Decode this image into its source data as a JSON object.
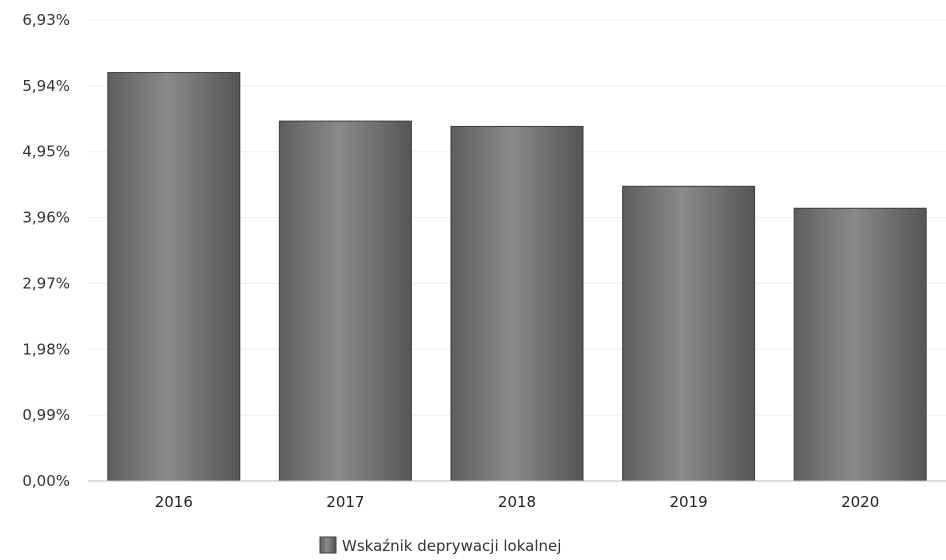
{
  "chart_data": {
    "type": "bar",
    "categories": [
      "2016",
      "2017",
      "2018",
      "2019",
      "2020"
    ],
    "series": [
      {
        "name": "Wskaźnik deprywacji lokalnej",
        "values": [
          6.14,
          5.41,
          5.33,
          4.43,
          4.1
        ],
        "color": "#7a7a7a"
      }
    ],
    "y_ticks": [
      "0,00%",
      "0,99%",
      "1,98%",
      "2,97%",
      "3,96%",
      "4,95%",
      "5,94%",
      "6,93%"
    ],
    "y_tick_values": [
      0,
      0.99,
      1.98,
      2.97,
      3.96,
      4.95,
      5.94,
      6.93
    ],
    "ylim": [
      0,
      6.93
    ],
    "grid": true,
    "legend_position": "bottom-center"
  }
}
